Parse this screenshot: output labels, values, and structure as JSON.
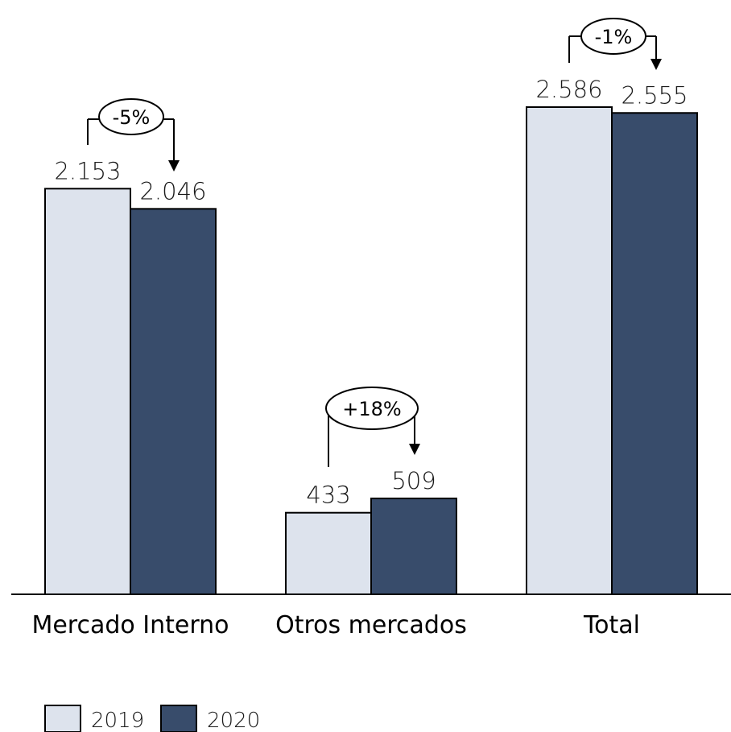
{
  "chart_data": {
    "type": "bar",
    "categories": [
      "Mercado Interno",
      "Otros mercados",
      "Total"
    ],
    "series": [
      {
        "name": "2019",
        "values": [
          2153,
          433,
          2586
        ],
        "labels": [
          "2.153",
          "433",
          "2.586"
        ]
      },
      {
        "name": "2020",
        "values": [
          2046,
          509,
          2555
        ],
        "labels": [
          "2.046",
          "509",
          "2.555"
        ]
      }
    ],
    "annotations": [
      "-5%",
      "+18%",
      "-1%"
    ],
    "ylim": [
      0,
      2600
    ],
    "grid": false,
    "legend": "bottom-left",
    "colors": {
      "2019": "#dde3ed",
      "2020": "#384c6b",
      "edge": "#000000",
      "axis": "#000000"
    }
  }
}
